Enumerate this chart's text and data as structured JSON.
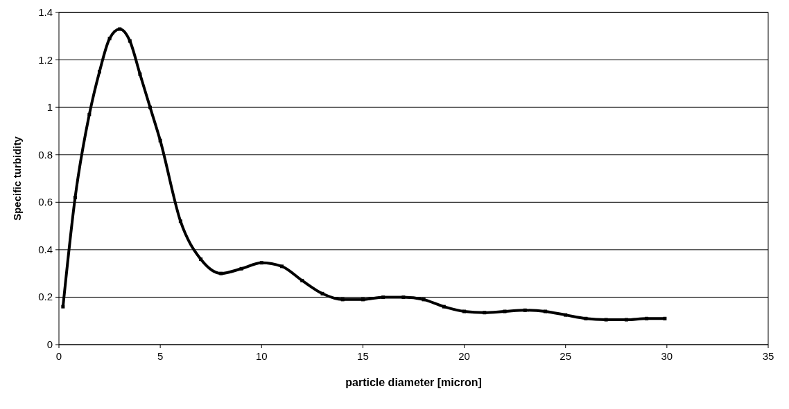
{
  "chart_data": {
    "type": "line",
    "xlabel": "particle diameter [micron]",
    "ylabel": "Specific turbidity",
    "xlim": [
      0,
      35
    ],
    "xticks": [
      0,
      5,
      10,
      15,
      20,
      25,
      30,
      35
    ],
    "ylim": [
      0,
      1.4
    ],
    "yticks": [
      0,
      {
        "value": 0.2,
        "label": "0.2"
      },
      {
        "value": 0.4,
        "label": "0.4"
      },
      {
        "value": 0.6,
        "label": "0.6"
      },
      {
        "value": 0.8,
        "label": "0.8"
      },
      1,
      {
        "value": 1.2,
        "label": "1.2"
      },
      {
        "value": 1.4,
        "label": "1.4"
      }
    ],
    "grid": "y",
    "marker": "square",
    "line_style": "solid",
    "series": [
      {
        "color": "#000000",
        "x": [
          0.2,
          0.8,
          1.5,
          2,
          2.5,
          3,
          3.5,
          4,
          4.5,
          5,
          6,
          7,
          8,
          9,
          10,
          11,
          12,
          13,
          14,
          15,
          16,
          17,
          18,
          19,
          20,
          21,
          22,
          23,
          24,
          25,
          26,
          27,
          28,
          29,
          29.9
        ],
        "values": [
          0.16,
          0.62,
          0.97,
          1.15,
          1.29,
          1.33,
          1.28,
          1.14,
          1.0,
          0.86,
          0.52,
          0.36,
          0.3,
          0.32,
          0.345,
          0.33,
          0.27,
          0.215,
          0.19,
          0.19,
          0.2,
          0.2,
          0.19,
          0.16,
          0.14,
          0.135,
          0.14,
          0.145,
          0.14,
          0.125,
          0.11,
          0.105,
          0.105,
          0.11,
          0.11
        ]
      }
    ]
  }
}
